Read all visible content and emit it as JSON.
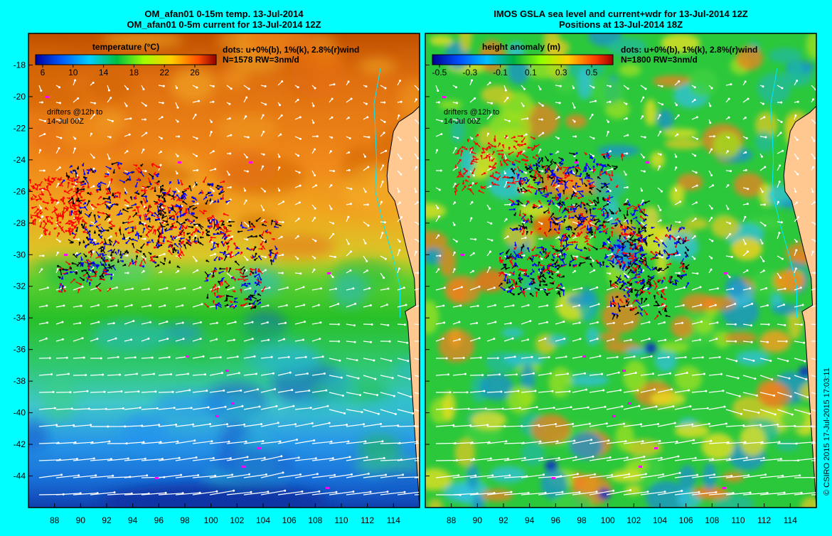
{
  "left_panel": {
    "title_line1": "OM_afan01 0-15m temp. 13-Jul-2014",
    "title_line2": "OM_afan01 0-5m current for 13-Jul-2014 12Z",
    "colorbar_label": "temperature (°C)",
    "colorbar_ticks": [
      "6",
      "10",
      "14",
      "18",
      "22",
      "26"
    ],
    "dots_line1": "dots: u+0%(b), 1%(k), 2.8%(r)wind",
    "dots_line2": "N=1578  RW=3nm/d",
    "note_line1": "drifters @12h to",
    "note_line2": "14-Jul 00Z"
  },
  "right_panel": {
    "title_line1": "IMOS GSLA sea level and current+wdr for 13-Jul-2014 12Z",
    "title_line2": "Positions at 13-Jul-2014 18Z",
    "colorbar_label": "height anomaly (m)",
    "colorbar_ticks": [
      "-0.5",
      "-0.3",
      "-0.1",
      "0.1",
      "0.3",
      "0.5"
    ],
    "dots_line1": "dots: u+0%(b), 1%(k), 2.8%(r)wind",
    "dots_line2": "N=1800  RW=3nm/d",
    "note_line1": "drifters @12h to",
    "note_line2": "14-Jul 00Z"
  },
  "axes": {
    "lat_ticks": [
      "-18",
      "-20",
      "-22",
      "-24",
      "-26",
      "-28",
      "-30",
      "-32",
      "-34",
      "-36",
      "-38",
      "-40",
      "-42",
      "-44"
    ],
    "lon_ticks": [
      "88",
      "90",
      "92",
      "94",
      "96",
      "98",
      "100",
      "102",
      "104",
      "106",
      "108",
      "110",
      "112",
      "114"
    ],
    "lon_range": [
      86,
      116
    ],
    "lat_range": [
      -46,
      -16
    ]
  },
  "copyright": "© CSIRO 2015  17-Jul-2015 17:03:11",
  "colors": {
    "frame": "#00ffff",
    "land": "#ffc890",
    "drifter_blue": "#0000ff",
    "drifter_black": "#000000",
    "drifter_red": "#ff0000",
    "marker_magenta": "#ff00ff"
  }
}
